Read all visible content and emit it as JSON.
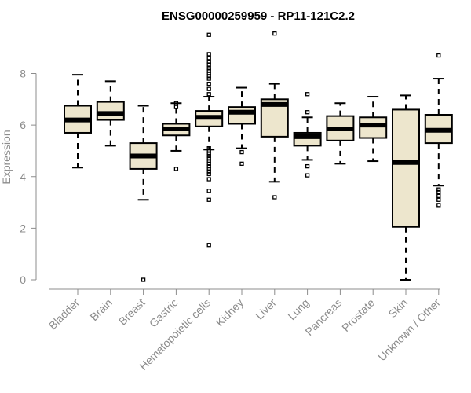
{
  "chart_data": {
    "type": "boxplot",
    "title": "ENSG00000259959 - RP11-121C2.2",
    "xlabel": "",
    "ylabel": "Expression",
    "ylim": [
      0,
      9.6
    ],
    "yticks": [
      0,
      2,
      4,
      6,
      8
    ],
    "box_color": "#ede6cd",
    "stroke_color": "#000000",
    "axis_color": "#8c8c8c",
    "categories": [
      {
        "label": "Bladder",
        "whisker_low": 4.35,
        "q1": 5.7,
        "median": 6.2,
        "q3": 6.75,
        "whisker_high": 7.95,
        "outliers": []
      },
      {
        "label": "Brain",
        "whisker_low": 5.2,
        "q1": 6.2,
        "median": 6.45,
        "q3": 6.9,
        "whisker_high": 7.7,
        "outliers": []
      },
      {
        "label": "Breast",
        "whisker_low": 3.1,
        "q1": 4.3,
        "median": 4.8,
        "q3": 5.3,
        "whisker_high": 6.75,
        "outliers": [
          0.0
        ]
      },
      {
        "label": "Gastric",
        "whisker_low": 5.0,
        "q1": 5.6,
        "median": 5.85,
        "q3": 6.05,
        "whisker_high": 6.85,
        "outliers": [
          4.3,
          6.7,
          6.85
        ]
      },
      {
        "label": "Hematopoietic cells",
        "whisker_low": 5.05,
        "q1": 5.95,
        "median": 6.3,
        "q3": 6.55,
        "whisker_high": 7.1,
        "outliers": [
          1.35,
          3.1,
          3.45,
          3.9,
          4.1,
          4.2,
          4.3,
          4.4,
          4.5,
          4.6,
          4.7,
          4.8,
          4.9,
          5.0,
          5.1,
          7.2,
          7.4,
          7.6,
          7.8,
          7.9,
          8.0,
          8.1,
          8.2,
          8.35,
          8.45,
          8.6,
          8.75,
          9.5
        ]
      },
      {
        "label": "Kidney",
        "whisker_low": 5.1,
        "q1": 6.05,
        "median": 6.5,
        "q3": 6.7,
        "whisker_high": 7.45,
        "outliers": [
          4.5,
          4.95
        ]
      },
      {
        "label": "Liver",
        "whisker_low": 3.8,
        "q1": 5.55,
        "median": 6.8,
        "q3": 7.0,
        "whisker_high": 7.6,
        "outliers": [
          3.2,
          9.55
        ]
      },
      {
        "label": "Lung",
        "whisker_low": 4.65,
        "q1": 5.2,
        "median": 5.55,
        "q3": 5.7,
        "whisker_high": 6.3,
        "outliers": [
          4.05,
          4.4,
          6.5,
          7.2
        ]
      },
      {
        "label": "Pancreas",
        "whisker_low": 4.5,
        "q1": 5.4,
        "median": 5.85,
        "q3": 6.35,
        "whisker_high": 6.85,
        "outliers": []
      },
      {
        "label": "Prostate",
        "whisker_low": 4.6,
        "q1": 5.5,
        "median": 6.0,
        "q3": 6.3,
        "whisker_high": 7.1,
        "outliers": []
      },
      {
        "label": "Skin",
        "whisker_low": 0.0,
        "q1": 2.05,
        "median": 4.55,
        "q3": 6.6,
        "whisker_high": 7.15,
        "outliers": []
      },
      {
        "label": "Unknown / Other",
        "whisker_low": 3.65,
        "q1": 5.3,
        "median": 5.8,
        "q3": 6.4,
        "whisker_high": 7.8,
        "outliers": [
          2.9,
          3.1,
          3.25,
          3.4,
          3.5,
          8.7
        ]
      }
    ]
  }
}
